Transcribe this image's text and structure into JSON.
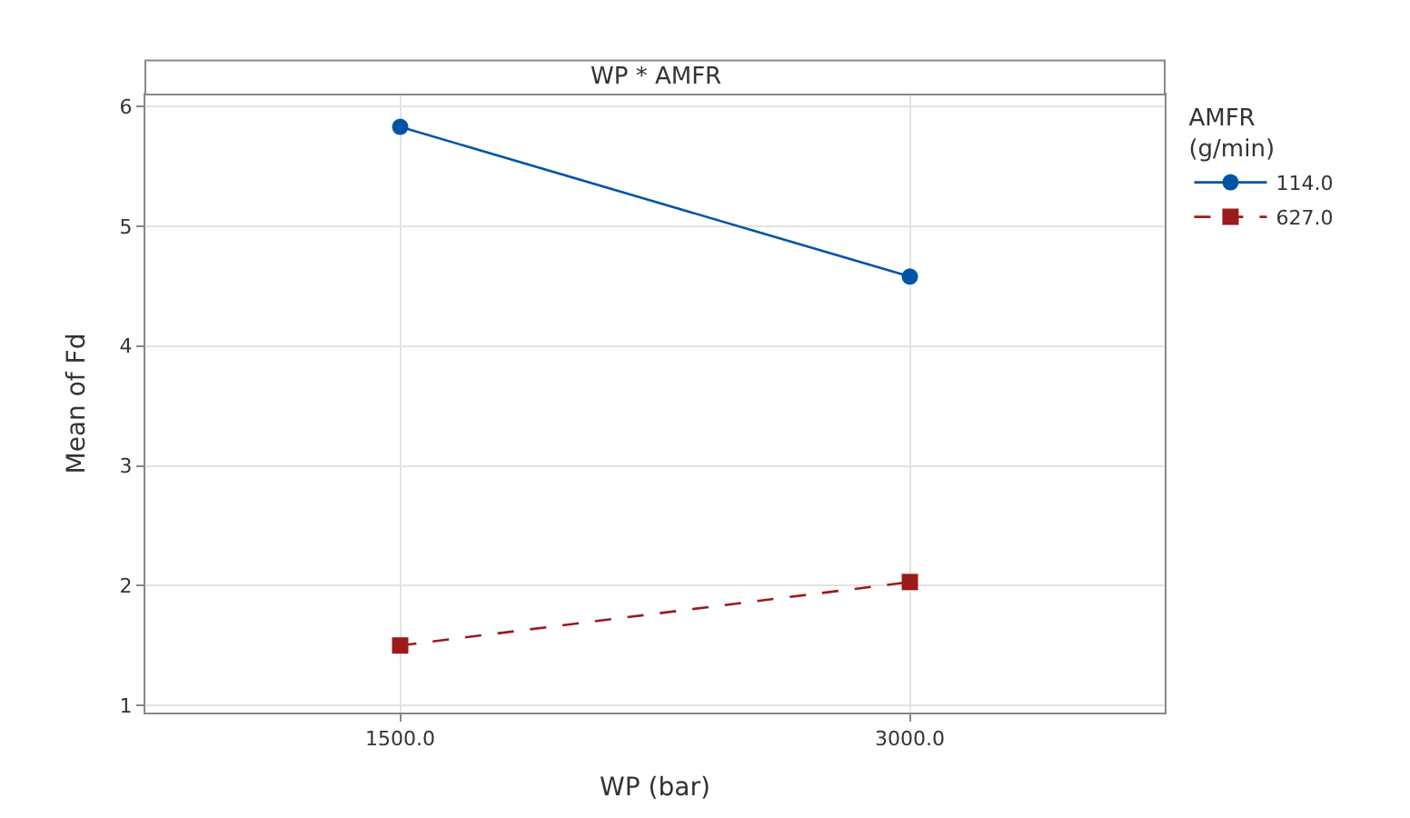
{
  "chart_data": {
    "type": "line",
    "title": "WP * AMFR",
    "xlabel": "WP (bar)",
    "ylabel": "Mean of Fd",
    "legend_title": "AMFR (g/min)",
    "categories": [
      "1500.0",
      "3000.0"
    ],
    "series": [
      {
        "name": "114.0",
        "color": "#0054a6",
        "values": [
          5.83,
          4.58
        ],
        "marker": "circle",
        "line_style": "solid"
      },
      {
        "name": "627.0",
        "color": "#9b1b1b",
        "values": [
          1.5,
          2.03
        ],
        "marker": "square",
        "line_style": "dashed"
      }
    ],
    "ylim": [
      0.94,
      6.1
    ],
    "yticks": [
      1,
      2,
      3,
      4,
      5,
      6
    ],
    "grid": true,
    "legend": "top right"
  }
}
